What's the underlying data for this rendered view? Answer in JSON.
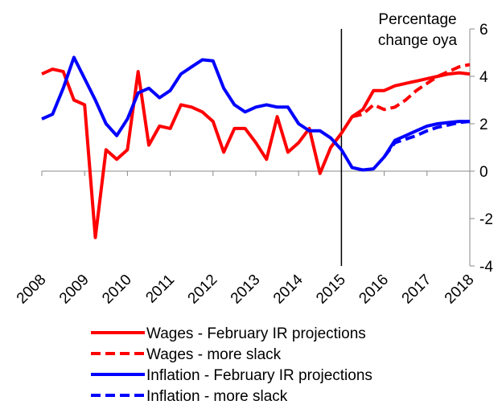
{
  "chart_data": {
    "type": "line",
    "annotation": [
      "Percentage",
      "change oya"
    ],
    "x": [
      2008,
      2008.25,
      2008.5,
      2008.75,
      2009,
      2009.25,
      2009.5,
      2009.75,
      2010,
      2010.25,
      2010.5,
      2010.75,
      2011,
      2011.25,
      2011.5,
      2011.75,
      2012,
      2012.25,
      2012.5,
      2012.75,
      2013,
      2013.25,
      2013.5,
      2013.75,
      2014,
      2014.25,
      2014.5,
      2014.75,
      2015,
      2015.25,
      2015.5,
      2015.75,
      2016,
      2016.25,
      2016.5,
      2016.75,
      2017,
      2017.25,
      2017.5,
      2017.75,
      2018
    ],
    "xlim": [
      2008,
      2018
    ],
    "xticks": [
      2008,
      2009,
      2010,
      2011,
      2012,
      2013,
      2014,
      2015,
      2016,
      2017,
      2018
    ],
    "ylim": [
      -4,
      6
    ],
    "yticks": [
      -4,
      -2,
      0,
      2,
      4,
      6
    ],
    "vline": 2015,
    "series": [
      {
        "name": "Wages - February IR projections",
        "color": "#ff0000",
        "dash": false,
        "values": [
          4.1,
          4.3,
          4.2,
          3.0,
          2.8,
          -2.8,
          0.9,
          0.5,
          0.9,
          4.2,
          1.1,
          1.9,
          1.8,
          2.8,
          2.7,
          2.5,
          2.1,
          0.8,
          1.8,
          1.8,
          1.2,
          0.5,
          2.3,
          0.8,
          1.2,
          1.8,
          -0.1,
          1.0,
          1.6,
          2.3,
          2.6,
          3.4,
          3.4,
          3.6,
          3.7,
          3.8,
          3.9,
          4.0,
          4.1,
          4.15,
          4.1
        ]
      },
      {
        "name": "Wages - more slack",
        "color": "#ff0000",
        "dash": true,
        "values": [
          null,
          null,
          null,
          null,
          null,
          null,
          null,
          null,
          null,
          null,
          null,
          null,
          null,
          null,
          null,
          null,
          null,
          null,
          null,
          null,
          null,
          null,
          null,
          null,
          null,
          null,
          null,
          null,
          null,
          2.3,
          2.4,
          2.8,
          2.6,
          2.7,
          3.0,
          3.4,
          3.7,
          4.0,
          4.2,
          4.4,
          4.5
        ]
      },
      {
        "name": "Inflation - February IR projections",
        "color": "#0000ff",
        "dash": false,
        "values": [
          2.2,
          2.4,
          3.5,
          4.8,
          3.9,
          3.0,
          2.0,
          1.5,
          2.2,
          3.3,
          3.5,
          3.1,
          3.4,
          4.1,
          4.4,
          4.7,
          4.65,
          3.5,
          2.8,
          2.5,
          2.7,
          2.8,
          2.7,
          2.7,
          2.0,
          1.7,
          1.7,
          1.4,
          0.9,
          0.15,
          0.05,
          0.1,
          0.6,
          1.3,
          1.5,
          1.7,
          1.9,
          2.0,
          2.05,
          2.1,
          2.1
        ]
      },
      {
        "name": "Inflation - more slack",
        "color": "#0000ff",
        "dash": true,
        "values": [
          null,
          null,
          null,
          null,
          null,
          null,
          null,
          null,
          null,
          null,
          null,
          null,
          null,
          null,
          null,
          null,
          null,
          null,
          null,
          null,
          null,
          null,
          null,
          null,
          null,
          null,
          null,
          null,
          null,
          null,
          null,
          null,
          0.6,
          1.2,
          1.35,
          1.5,
          1.7,
          1.85,
          1.95,
          2.05,
          2.1
        ]
      }
    ]
  }
}
